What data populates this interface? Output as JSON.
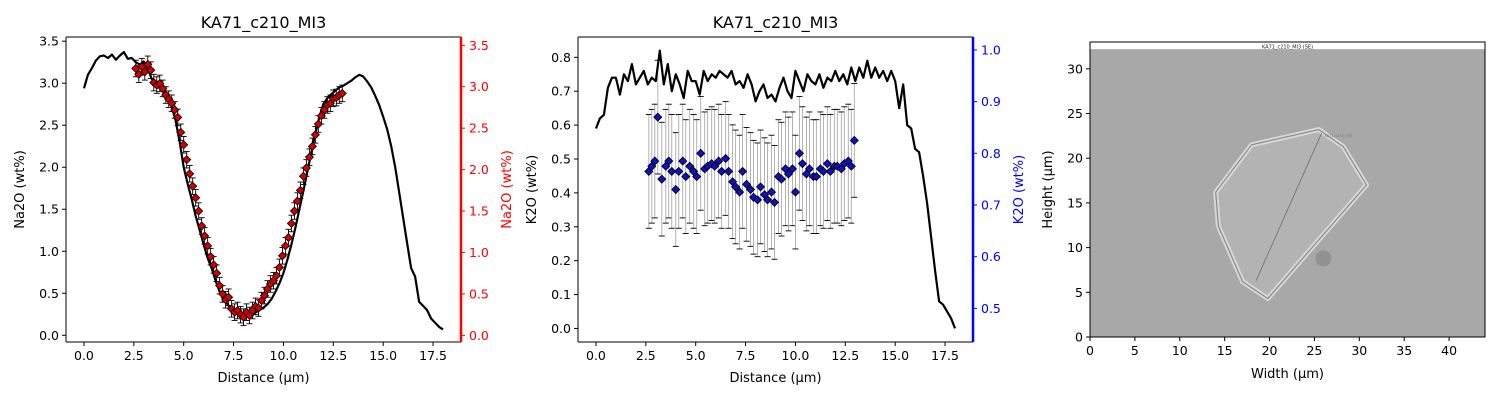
{
  "chart_data": [
    {
      "type": "line",
      "title": "KA71_c210_MI3",
      "xlabel": "Distance (µm)",
      "ylabel": "Na2O (wt%)",
      "y2label": "Na2O (wt%)",
      "xlim": [
        -0.9,
        18.9
      ],
      "ylim": [
        -0.08,
        3.55
      ],
      "y2lim": [
        -0.08,
        3.6
      ],
      "xticks": [
        "0.0",
        "2.5",
        "5.0",
        "7.5",
        "10.0",
        "12.5",
        "15.0",
        "17.5"
      ],
      "yticks": [
        "0.0",
        "0.5",
        "1.0",
        "1.5",
        "2.0",
        "2.5",
        "3.0",
        "3.5"
      ],
      "y2ticks": [
        "0.0",
        "0.5",
        "1.0",
        "1.5",
        "2.0",
        "2.5",
        "3.0",
        "3.5"
      ],
      "colors": {
        "line": "#000000",
        "points": "#d40000",
        "secondary_axis": "#ff0000",
        "errorbar": "#000000"
      },
      "series": [
        {
          "kind": "line",
          "x": [
            0.0,
            0.2,
            0.4,
            0.6,
            0.8,
            1.0,
            1.2,
            1.4,
            1.6,
            1.8,
            2.0,
            2.2,
            2.4,
            2.6,
            2.8,
            3.0,
            3.2,
            3.4,
            3.6,
            3.8,
            4.0,
            4.2,
            4.4,
            4.6,
            4.8,
            5.0,
            5.2,
            5.4,
            5.6,
            5.8,
            6.0,
            6.2,
            6.4,
            6.6,
            6.8,
            7.0,
            7.2,
            7.4,
            7.6,
            7.8,
            8.0,
            8.2,
            8.4,
            8.6,
            8.8,
            9.0,
            9.2,
            9.4,
            9.6,
            9.8,
            10.0,
            10.2,
            10.4,
            10.6,
            10.8,
            11.0,
            11.2,
            11.4,
            11.6,
            11.8,
            12.0,
            12.2,
            12.4,
            12.6,
            12.8,
            13.0,
            13.2,
            13.4,
            13.6,
            13.8,
            14.0,
            14.2,
            14.4,
            14.6,
            14.8,
            15.0,
            15.2,
            15.4,
            15.6,
            15.8,
            16.0,
            16.2,
            16.4,
            16.6,
            16.8,
            17.0,
            17.2,
            17.4,
            17.6,
            17.8,
            18.0
          ],
          "y": [
            2.94,
            3.1,
            3.18,
            3.27,
            3.32,
            3.33,
            3.3,
            3.34,
            3.28,
            3.33,
            3.37,
            3.29,
            3.3,
            3.25,
            3.22,
            3.26,
            3.17,
            3.05,
            3.0,
            2.98,
            2.9,
            2.84,
            2.72,
            2.55,
            2.3,
            2.0,
            1.8,
            1.62,
            1.42,
            1.25,
            1.08,
            0.92,
            0.8,
            0.65,
            0.52,
            0.42,
            0.37,
            0.3,
            0.27,
            0.26,
            0.24,
            0.26,
            0.25,
            0.27,
            0.3,
            0.33,
            0.37,
            0.43,
            0.52,
            0.62,
            0.74,
            0.9,
            1.08,
            1.28,
            1.5,
            1.72,
            1.95,
            2.18,
            2.4,
            2.6,
            2.75,
            2.82,
            2.87,
            2.91,
            2.95,
            2.97,
            3.0,
            3.03,
            3.07,
            3.1,
            3.08,
            3.02,
            2.95,
            2.85,
            2.74,
            2.6,
            2.45,
            2.25,
            2.0,
            1.7,
            1.4,
            1.1,
            0.8,
            0.7,
            0.4,
            0.35,
            0.3,
            0.2,
            0.15,
            0.1,
            0.07
          ]
        },
        {
          "kind": "points_with_errorbars",
          "axis": "secondary",
          "x": [
            2.6,
            2.75,
            2.9,
            3.05,
            3.2,
            3.35,
            3.5,
            3.65,
            3.8,
            3.95,
            4.1,
            4.25,
            4.4,
            4.55,
            4.7,
            4.85,
            5.0,
            5.15,
            5.3,
            5.45,
            5.6,
            5.75,
            5.9,
            6.05,
            6.2,
            6.35,
            6.5,
            6.65,
            6.8,
            6.95,
            7.1,
            7.25,
            7.4,
            7.55,
            7.7,
            7.85,
            8.0,
            8.15,
            8.3,
            8.45,
            8.6,
            8.75,
            8.9,
            9.05,
            9.2,
            9.35,
            9.5,
            9.65,
            9.8,
            9.95,
            10.1,
            10.25,
            10.4,
            10.55,
            10.7,
            10.85,
            11.0,
            11.15,
            11.3,
            11.45,
            11.6,
            11.75,
            11.9,
            12.05,
            12.2,
            12.35,
            12.5,
            12.65,
            12.8,
            12.95
          ],
          "y": [
            3.22,
            3.15,
            3.24,
            3.18,
            3.27,
            3.2,
            3.05,
            3.02,
            3.04,
            2.98,
            2.9,
            2.85,
            2.8,
            2.72,
            2.63,
            2.45,
            2.3,
            2.12,
            1.95,
            1.8,
            1.66,
            1.5,
            1.32,
            1.2,
            1.08,
            0.95,
            0.85,
            0.75,
            0.6,
            0.5,
            0.43,
            0.46,
            0.32,
            0.28,
            0.3,
            0.25,
            0.22,
            0.28,
            0.24,
            0.3,
            0.35,
            0.33,
            0.42,
            0.48,
            0.56,
            0.62,
            0.66,
            0.72,
            0.82,
            0.96,
            1.08,
            1.18,
            1.35,
            1.5,
            1.62,
            1.75,
            1.92,
            2.02,
            2.15,
            2.28,
            2.42,
            2.55,
            2.65,
            2.72,
            2.78,
            2.8,
            2.86,
            2.87,
            2.9,
            2.92
          ],
          "error": 0.1
        }
      ]
    },
    {
      "type": "line",
      "title": "KA71_c210_MI3",
      "xlabel": "Distance (µm)",
      "ylabel": "K2O (wt%)",
      "y2label": "K2O (wt%)",
      "xlim": [
        -0.9,
        18.9
      ],
      "ylim": [
        -0.04,
        0.86
      ],
      "y2lim": [
        0.435,
        1.025
      ],
      "xticks": [
        "0.0",
        "2.5",
        "5.0",
        "7.5",
        "10.0",
        "12.5",
        "15.0",
        "17.5"
      ],
      "yticks": [
        "0.0",
        "0.1",
        "0.2",
        "0.3",
        "0.4",
        "0.5",
        "0.6",
        "0.7",
        "0.8"
      ],
      "y2ticks": [
        "0.5",
        "0.6",
        "0.7",
        "0.8",
        "0.9",
        "1.0"
      ],
      "colors": {
        "line": "#000000",
        "points": "#1010c0",
        "secondary_axis": "#0000ff",
        "errorbar": "#aaaaaa"
      },
      "series": [
        {
          "kind": "line",
          "x": [
            0.0,
            0.2,
            0.4,
            0.6,
            0.8,
            1.0,
            1.2,
            1.4,
            1.6,
            1.8,
            2.0,
            2.2,
            2.4,
            2.6,
            2.8,
            3.0,
            3.2,
            3.4,
            3.6,
            3.8,
            4.0,
            4.2,
            4.4,
            4.6,
            4.8,
            5.0,
            5.2,
            5.4,
            5.6,
            5.8,
            6.0,
            6.2,
            6.4,
            6.6,
            6.8,
            7.0,
            7.2,
            7.4,
            7.6,
            7.8,
            8.0,
            8.2,
            8.4,
            8.6,
            8.8,
            9.0,
            9.2,
            9.4,
            9.6,
            9.8,
            10.0,
            10.2,
            10.4,
            10.6,
            10.8,
            11.0,
            11.2,
            11.4,
            11.6,
            11.8,
            12.0,
            12.2,
            12.4,
            12.6,
            12.8,
            13.0,
            13.2,
            13.4,
            13.6,
            13.8,
            14.0,
            14.2,
            14.4,
            14.6,
            14.8,
            15.0,
            15.2,
            15.4,
            15.6,
            15.8,
            16.0,
            16.2,
            16.4,
            16.6,
            16.8,
            17.0,
            17.2,
            17.4,
            17.6,
            17.8,
            18.0
          ],
          "y": [
            0.59,
            0.62,
            0.63,
            0.71,
            0.74,
            0.74,
            0.69,
            0.75,
            0.73,
            0.78,
            0.72,
            0.74,
            0.76,
            0.72,
            0.74,
            0.73,
            0.82,
            0.72,
            0.78,
            0.7,
            0.75,
            0.72,
            0.68,
            0.76,
            0.73,
            0.73,
            0.69,
            0.76,
            0.73,
            0.75,
            0.74,
            0.76,
            0.75,
            0.74,
            0.76,
            0.72,
            0.73,
            0.71,
            0.75,
            0.72,
            0.67,
            0.7,
            0.72,
            0.68,
            0.69,
            0.67,
            0.71,
            0.74,
            0.7,
            0.68,
            0.76,
            0.73,
            0.7,
            0.75,
            0.73,
            0.72,
            0.75,
            0.71,
            0.74,
            0.73,
            0.76,
            0.73,
            0.75,
            0.72,
            0.77,
            0.73,
            0.77,
            0.74,
            0.79,
            0.74,
            0.77,
            0.74,
            0.76,
            0.73,
            0.76,
            0.73,
            0.65,
            0.72,
            0.6,
            0.59,
            0.53,
            0.52,
            0.45,
            0.37,
            0.27,
            0.17,
            0.08,
            0.07,
            0.05,
            0.03,
            0.0
          ]
        },
        {
          "kind": "points_with_errorbars",
          "axis": "secondary",
          "x": [
            2.65,
            2.8,
            2.95,
            3.1,
            3.3,
            3.5,
            3.65,
            3.8,
            4.0,
            4.15,
            4.35,
            4.5,
            4.7,
            4.9,
            5.05,
            5.25,
            5.45,
            5.6,
            5.8,
            5.95,
            6.15,
            6.3,
            6.5,
            6.65,
            6.85,
            7.0,
            7.2,
            7.35,
            7.55,
            7.75,
            7.9,
            8.1,
            8.25,
            8.45,
            8.6,
            8.8,
            8.95,
            9.15,
            9.3,
            9.5,
            9.65,
            9.85,
            10.0,
            10.2,
            10.35,
            10.55,
            10.7,
            10.9,
            11.05,
            11.25,
            11.4,
            11.6,
            11.75,
            11.95,
            12.1,
            12.3,
            12.45,
            12.65,
            12.8,
            12.95
          ],
          "y": [
            0.765,
            0.775,
            0.785,
            0.87,
            0.75,
            0.775,
            0.785,
            0.765,
            0.73,
            0.765,
            0.785,
            0.755,
            0.775,
            0.765,
            0.755,
            0.8,
            0.77,
            0.775,
            0.78,
            0.775,
            0.785,
            0.765,
            0.79,
            0.765,
            0.745,
            0.735,
            0.725,
            0.765,
            0.74,
            0.73,
            0.715,
            0.71,
            0.735,
            0.72,
            0.71,
            0.725,
            0.705,
            0.755,
            0.75,
            0.77,
            0.76,
            0.77,
            0.725,
            0.8,
            0.78,
            0.76,
            0.77,
            0.755,
            0.755,
            0.77,
            0.765,
            0.78,
            0.765,
            0.775,
            0.775,
            0.77,
            0.78,
            0.785,
            0.775,
            0.825
          ],
          "error": 0.11
        }
      ]
    },
    {
      "type": "heatmap",
      "title": "",
      "caption": "KA71_c210_MI3 (SE)",
      "label": "KA71_c210_MI3",
      "xlabel": "Width (µm)",
      "ylabel": "Height (µm)",
      "xlim": [
        0,
        44
      ],
      "ylim": [
        0,
        33
      ],
      "xticks": [
        "0",
        "5",
        "10",
        "15",
        "20",
        "25",
        "30",
        "35",
        "40"
      ],
      "yticks": [
        "0",
        "5",
        "10",
        "15",
        "20",
        "25",
        "30"
      ],
      "colors": {
        "background": "#a8a8a8",
        "crystal": "#b3b3b3",
        "rim_light": "#d8d8d8",
        "rim_dark": "#8a8a8a",
        "caption_band": "#ffffff"
      },
      "image_content": {
        "description_free": "grayscale SE image",
        "crystal_outline": [
          [
            14.3,
            12.4
          ],
          [
            14.0,
            16.2
          ],
          [
            18.0,
            21.5
          ],
          [
            25.5,
            23.2
          ],
          [
            28.2,
            21.3
          ],
          [
            30.8,
            17.0
          ],
          [
            25.0,
            10.3
          ],
          [
            19.8,
            4.3
          ],
          [
            17.0,
            6.2
          ]
        ],
        "profile_line": [
          [
            18.5,
            6.3
          ],
          [
            25.8,
            22.8
          ]
        ],
        "dark_spot": [
          26.0,
          8.8
        ],
        "caption_band_y": [
          32.2,
          33
        ]
      }
    }
  ]
}
